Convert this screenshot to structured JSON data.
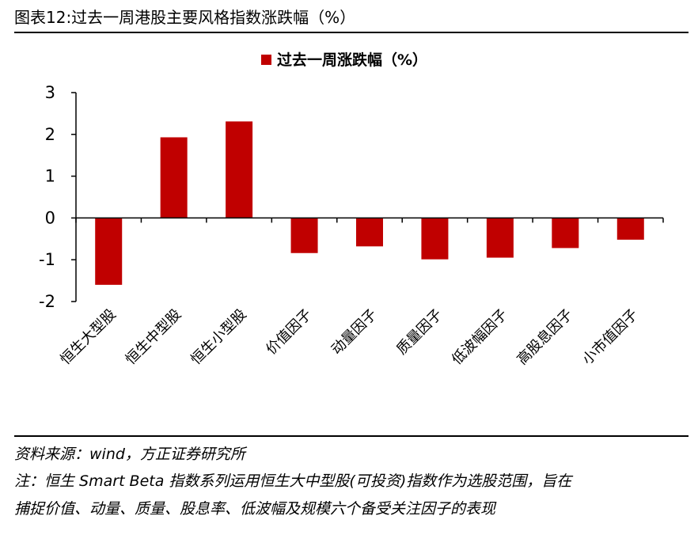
{
  "title": "图表12:过去一周港股主要风格指数涨跌幅（%）",
  "source": "资料来源：wind，方正证券研究所",
  "note_line1": "注：恒生 Smart Beta 指数系列运用恒生大中型股(可投资)指数作为选股范围，旨在",
  "note_line2": "捕捉价值、动量、质量、股息率、低波幅及规模六个备受关注因子的表现",
  "colors": {
    "bar": "#c00000",
    "axis": "#000000"
  },
  "chart_data": {
    "type": "bar",
    "title": "",
    "xlabel": "",
    "ylabel": "",
    "legend_position": "top-center",
    "grid": false,
    "ylim": [
      -2,
      3
    ],
    "yticks": [
      3,
      2,
      1,
      0,
      -1,
      -2
    ],
    "categories": [
      "恒生大型股",
      "恒生中型股",
      "恒生小型股",
      "价值因子",
      "动量因子",
      "质量因子",
      "低波幅因子",
      "高股息因子",
      "小市值因子"
    ],
    "series": [
      {
        "name": "过去一周涨跌幅（%）",
        "values": [
          -1.6,
          1.93,
          2.31,
          -0.84,
          -0.68,
          -0.99,
          -0.95,
          -0.72,
          -0.52
        ]
      }
    ]
  }
}
